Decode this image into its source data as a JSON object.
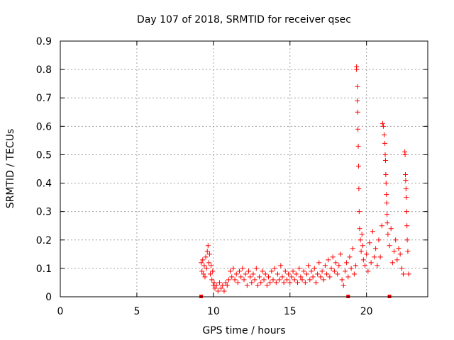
{
  "chart_data": {
    "type": "scatter",
    "title": "Day 107 of 2018, SRMTID for receiver qsec",
    "xlabel": "GPS time / hours",
    "ylabel": "SRMTID / TECUs",
    "xlim": [
      0,
      24
    ],
    "ylim": [
      0,
      0.9
    ],
    "xticks": [
      0,
      5,
      10,
      15,
      20
    ],
    "yticks": [
      0,
      0.1,
      0.2,
      0.3,
      0.4,
      0.5,
      0.6,
      0.7,
      0.8,
      0.9
    ],
    "xtick_labels": [
      "0",
      "5",
      "10",
      "15",
      "20"
    ],
    "ytick_labels": [
      "0",
      "0.1",
      "0.2",
      "0.3",
      "0.4",
      "0.5",
      "0.6",
      "0.7",
      "0.8",
      "0.9"
    ],
    "grid": true,
    "marker": "+",
    "color": "#ff0000",
    "series": [
      {
        "name": "SRMTID",
        "x": [
          9.2,
          9.25,
          9.3,
          9.35,
          9.4,
          9.45,
          9.5,
          9.55,
          9.6,
          9.65,
          9.7,
          9.75,
          9.8,
          9.85,
          9.9,
          9.95,
          10.0,
          10.05,
          10.1,
          10.2,
          10.3,
          10.4,
          10.5,
          10.6,
          10.7,
          10.8,
          10.9,
          11.0,
          11.1,
          11.2,
          11.3,
          11.4,
          11.5,
          11.6,
          11.7,
          11.8,
          11.9,
          12.0,
          12.1,
          12.2,
          12.3,
          12.4,
          12.5,
          12.6,
          12.7,
          12.8,
          12.9,
          13.0,
          13.1,
          13.2,
          13.3,
          13.4,
          13.5,
          13.6,
          13.7,
          13.8,
          13.9,
          14.0,
          14.1,
          14.2,
          14.3,
          14.4,
          14.5,
          14.6,
          14.7,
          14.8,
          14.9,
          15.0,
          15.1,
          15.2,
          15.3,
          15.4,
          15.5,
          15.6,
          15.7,
          15.8,
          15.9,
          16.0,
          16.1,
          16.2,
          16.3,
          16.4,
          16.5,
          16.6,
          16.7,
          16.8,
          16.9,
          17.0,
          17.1,
          17.2,
          17.3,
          17.4,
          17.5,
          17.6,
          17.7,
          17.8,
          17.9,
          18.0,
          18.1,
          18.2,
          18.3,
          18.4,
          18.5,
          18.6,
          18.7,
          18.8,
          18.9,
          19.0,
          19.1,
          19.2,
          19.3,
          19.35,
          19.35,
          19.4,
          19.4,
          19.42,
          19.44,
          19.46,
          19.48,
          19.5,
          19.52,
          19.55,
          19.6,
          19.65,
          19.7,
          19.75,
          19.8,
          19.9,
          20.0,
          20.1,
          20.2,
          20.3,
          20.4,
          20.5,
          20.6,
          20.7,
          20.8,
          20.9,
          21.0,
          21.05,
          21.1,
          21.15,
          21.2,
          21.22,
          21.24,
          21.26,
          21.28,
          21.3,
          21.32,
          21.34,
          21.36,
          21.4,
          21.5,
          21.6,
          21.7,
          21.8,
          21.9,
          22.0,
          22.1,
          22.2,
          22.3,
          22.4,
          22.5,
          22.52,
          22.54,
          22.56,
          22.58,
          22.6,
          22.62,
          22.64,
          22.66,
          22.7,
          22.75
        ],
        "y": [
          0.12,
          0.09,
          0.13,
          0.08,
          0.11,
          0.07,
          0.14,
          0.1,
          0.16,
          0.18,
          0.12,
          0.15,
          0.08,
          0.11,
          0.06,
          0.09,
          0.04,
          0.05,
          0.03,
          0.04,
          0.02,
          0.05,
          0.03,
          0.04,
          0.02,
          0.05,
          0.04,
          0.06,
          0.09,
          0.07,
          0.1,
          0.06,
          0.08,
          0.05,
          0.09,
          0.07,
          0.1,
          0.06,
          0.08,
          0.04,
          0.09,
          0.07,
          0.05,
          0.08,
          0.06,
          0.1,
          0.04,
          0.07,
          0.05,
          0.09,
          0.06,
          0.08,
          0.04,
          0.07,
          0.05,
          0.09,
          0.06,
          0.1,
          0.05,
          0.08,
          0.06,
          0.11,
          0.07,
          0.05,
          0.09,
          0.06,
          0.08,
          0.05,
          0.07,
          0.09,
          0.06,
          0.08,
          0.05,
          0.1,
          0.07,
          0.06,
          0.09,
          0.05,
          0.08,
          0.11,
          0.06,
          0.09,
          0.07,
          0.1,
          0.05,
          0.08,
          0.12,
          0.07,
          0.09,
          0.06,
          0.11,
          0.08,
          0.13,
          0.07,
          0.1,
          0.14,
          0.09,
          0.12,
          0.08,
          0.11,
          0.15,
          0.06,
          0.04,
          0.09,
          0.12,
          0.07,
          0.14,
          0.1,
          0.17,
          0.08,
          0.11,
          0.81,
          0.8,
          0.74,
          0.69,
          0.65,
          0.59,
          0.53,
          0.46,
          0.38,
          0.3,
          0.24,
          0.2,
          0.16,
          0.22,
          0.18,
          0.13,
          0.11,
          0.15,
          0.09,
          0.19,
          0.12,
          0.23,
          0.14,
          0.17,
          0.11,
          0.2,
          0.14,
          0.25,
          0.61,
          0.6,
          0.57,
          0.54,
          0.5,
          0.48,
          0.43,
          0.4,
          0.36,
          0.33,
          0.29,
          0.26,
          0.22,
          0.18,
          0.24,
          0.12,
          0.16,
          0.2,
          0.13,
          0.17,
          0.15,
          0.1,
          0.08,
          0.51,
          0.5,
          0.43,
          0.41,
          0.38,
          0.35,
          0.3,
          0.25,
          0.2,
          0.16,
          0.08
        ]
      }
    ],
    "gaps_markers_x": [
      9.2,
      18.8,
      21.5
    ]
  }
}
